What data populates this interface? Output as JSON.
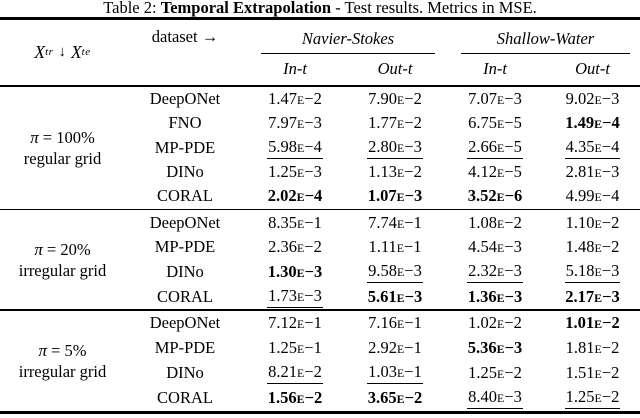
{
  "title": {
    "prefix": "Table 2: ",
    "emphasis": "Temporal Extrapolation",
    "suffix": " - Test results. Metrics in MSE."
  },
  "header": {
    "row_col": {
      "x1": "X",
      "sub1": "tr",
      "arrow": "↓",
      "x2": "X",
      "sub2": "te"
    },
    "dataset_label": "dataset →",
    "groups": [
      {
        "label": "Navier-Stokes",
        "subcols": [
          "In-t",
          "Out-t"
        ]
      },
      {
        "label": "Shallow-Water",
        "subcols": [
          "In-t",
          "Out-t"
        ]
      }
    ]
  },
  "blocks": [
    {
      "setting": {
        "symbol": "π",
        "value": "= 100%",
        "grid": "regular grid"
      },
      "rows": [
        {
          "method": "DeepONet",
          "values": [
            {
              "v": "1.47E−2",
              "s": "plain"
            },
            {
              "v": "7.90E−2",
              "s": "plain"
            },
            {
              "v": "7.07E−3",
              "s": "plain"
            },
            {
              "v": "9.02E−3",
              "s": "plain"
            }
          ]
        },
        {
          "method": "FNO",
          "values": [
            {
              "v": "7.97E−3",
              "s": "plain"
            },
            {
              "v": "1.77E−2",
              "s": "plain"
            },
            {
              "v": "6.75E−5",
              "s": "plain"
            },
            {
              "v": "1.49E−4",
              "s": "bold"
            }
          ]
        },
        {
          "method": "MP-PDE",
          "values": [
            {
              "v": "5.98E−4",
              "s": "underline"
            },
            {
              "v": "2.80E−3",
              "s": "underline"
            },
            {
              "v": "2.66E−5",
              "s": "underline"
            },
            {
              "v": "4.35E−4",
              "s": "underline"
            }
          ]
        },
        {
          "method": "DINo",
          "values": [
            {
              "v": "1.25E−3",
              "s": "plain"
            },
            {
              "v": "1.13E−2",
              "s": "plain"
            },
            {
              "v": "4.12E−5",
              "s": "plain"
            },
            {
              "v": "2.81E−3",
              "s": "plain"
            }
          ]
        },
        {
          "method": "CORAL",
          "values": [
            {
              "v": "2.02E−4",
              "s": "bold"
            },
            {
              "v": "1.07E−3",
              "s": "bold"
            },
            {
              "v": "3.52E−6",
              "s": "bold"
            },
            {
              "v": "4.99E−4",
              "s": "plain"
            }
          ]
        }
      ]
    },
    {
      "setting": {
        "symbol": "π",
        "value": "= 20%",
        "grid": "irregular grid"
      },
      "rows": [
        {
          "method": "DeepONet",
          "values": [
            {
              "v": "8.35E−1",
              "s": "plain"
            },
            {
              "v": "7.74E−1",
              "s": "plain"
            },
            {
              "v": "1.08E−2",
              "s": "plain"
            },
            {
              "v": "1.10E−2",
              "s": "plain"
            }
          ]
        },
        {
          "method": "MP-PDE",
          "values": [
            {
              "v": "2.36E−2",
              "s": "plain"
            },
            {
              "v": "1.11E−1",
              "s": "plain"
            },
            {
              "v": "4.54E−3",
              "s": "plain"
            },
            {
              "v": "1.48E−2",
              "s": "plain"
            }
          ]
        },
        {
          "method": "DINo",
          "values": [
            {
              "v": "1.30E−3",
              "s": "bold"
            },
            {
              "v": "9.58E−3",
              "s": "underline"
            },
            {
              "v": "2.32E−3",
              "s": "underline"
            },
            {
              "v": "5.18E−3",
              "s": "underline"
            }
          ]
        },
        {
          "method": "CORAL",
          "values": [
            {
              "v": "1.73E−3",
              "s": "underline"
            },
            {
              "v": "5.61E−3",
              "s": "bold"
            },
            {
              "v": "1.36E−3",
              "s": "bold"
            },
            {
              "v": "2.17E−3",
              "s": "bold"
            }
          ]
        }
      ]
    },
    {
      "setting": {
        "symbol": "π",
        "value": "= 5%",
        "grid": "irregular grid"
      },
      "rows": [
        {
          "method": "DeepONet",
          "values": [
            {
              "v": "7.12E−1",
              "s": "plain"
            },
            {
              "v": "7.16E−1",
              "s": "plain"
            },
            {
              "v": "1.02E−2",
              "s": "plain"
            },
            {
              "v": "1.01E−2",
              "s": "bold"
            }
          ]
        },
        {
          "method": "MP-PDE",
          "values": [
            {
              "v": "1.25E−1",
              "s": "plain"
            },
            {
              "v": "2.92E−1",
              "s": "plain"
            },
            {
              "v": "5.36E−3",
              "s": "bold"
            },
            {
              "v": "1.81E−2",
              "s": "plain"
            }
          ]
        },
        {
          "method": "DINo",
          "values": [
            {
              "v": "8.21E−2",
              "s": "underline"
            },
            {
              "v": "1.03E−1",
              "s": "underline"
            },
            {
              "v": "1.25E−2",
              "s": "plain"
            },
            {
              "v": "1.51E−2",
              "s": "plain"
            }
          ]
        },
        {
          "method": "CORAL",
          "values": [
            {
              "v": "1.56E−2",
              "s": "bold"
            },
            {
              "v": "3.65E−2",
              "s": "bold"
            },
            {
              "v": "8.40E−3",
              "s": "underline"
            },
            {
              "v": "1.25E−2",
              "s": "underline"
            }
          ]
        }
      ]
    }
  ]
}
